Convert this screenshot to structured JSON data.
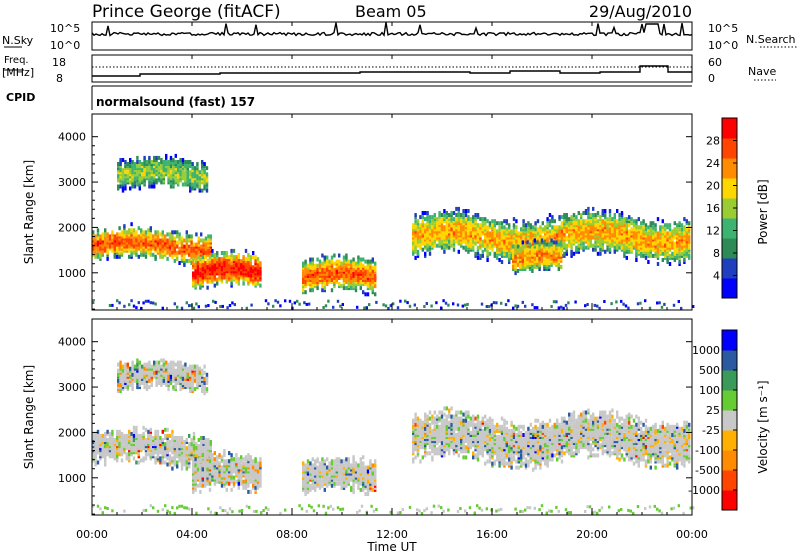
{
  "header": {
    "station": "Prince George (fitACF)",
    "beam": "Beam 05",
    "date": "29/Aug/2010"
  },
  "noise_panel": {
    "left_label": "N.Sky",
    "right_label": "N.Search",
    "left_ticks": [
      "10^5",
      "10^0"
    ],
    "right_ticks": [
      "10^5",
      "10^0"
    ]
  },
  "freq_panel": {
    "left_label_1": "Freq.",
    "left_label_2": "[MHz]",
    "right_label": "Nave",
    "left_ticks": [
      "18",
      "8"
    ],
    "right_ticks": [
      "60",
      "0"
    ]
  },
  "cpid_panel": {
    "left_label": "CPID",
    "program": "normalsound (fast) 157"
  },
  "colors": {
    "power": [
      "#0000ff",
      "#1f3fbf",
      "#2e8b57",
      "#3cb371",
      "#9acd32",
      "#ffd700",
      "#ff8c00",
      "#ff4500",
      "#ff0000"
    ],
    "velocity": [
      "#ff0000",
      "#ff4500",
      "#ff8c00",
      "#ffb000",
      "#c8c8c8",
      "#66cc33",
      "#3a9a5a",
      "#2c5aa0",
      "#0000ff"
    ]
  },
  "chart_data": [
    {
      "type": "heatmap",
      "quantity": "Power",
      "ylabel": "Slant Range [km]",
      "ylim": [
        180,
        4500
      ],
      "yticks": [
        "1000",
        "2000",
        "3000",
        "4000"
      ],
      "xlim": [
        0,
        24
      ],
      "colorbar": {
        "label": "Power [dB]",
        "ticks": [
          "4",
          "8",
          "12",
          "16",
          "20",
          "24",
          "28"
        ],
        "range": [
          0,
          32
        ]
      },
      "echo_regions": [
        {
          "t_start": 0.0,
          "t_end": 4.8,
          "range_center": 1600,
          "range_width": 380,
          "peak_db": 26
        },
        {
          "t_start": 1.0,
          "t_end": 4.6,
          "range_center": 3150,
          "range_width": 380,
          "peak_db": 16
        },
        {
          "t_start": 4.0,
          "t_end": 6.7,
          "range_center": 1000,
          "range_width": 430,
          "peak_db": 30
        },
        {
          "t_start": 8.4,
          "t_end": 11.3,
          "range_center": 900,
          "range_width": 430,
          "peak_db": 26
        },
        {
          "t_start": 12.8,
          "t_end": 23.9,
          "range_center": 1800,
          "range_width": 520,
          "peak_db": 22
        },
        {
          "t_start": 16.8,
          "t_end": 18.8,
          "range_center": 1300,
          "range_width": 360,
          "peak_db": 24
        }
      ]
    },
    {
      "type": "heatmap",
      "quantity": "Velocity",
      "ylabel": "Slant Range [km]",
      "ylim": [
        180,
        4500
      ],
      "yticks": [
        "1000",
        "2000",
        "3000",
        "4000"
      ],
      "xlim": [
        0,
        24
      ],
      "xlabel": "Time UT",
      "xticks": [
        "00:00",
        "04:00",
        "08:00",
        "12:00",
        "16:00",
        "20:00",
        "00:00"
      ],
      "colorbar": {
        "label": "Velocity [m s⁻¹]",
        "ticks": [
          "1000",
          "500",
          "100",
          "25",
          "-25",
          "-100",
          "-500",
          "-1000"
        ]
      },
      "echo_regions": [
        {
          "t_start": 0.0,
          "t_end": 4.8,
          "range_center": 1650,
          "range_width": 420,
          "typical_velocity": 0
        },
        {
          "t_start": 1.0,
          "t_end": 4.6,
          "range_center": 3200,
          "range_width": 350,
          "typical_velocity": -150
        },
        {
          "t_start": 4.0,
          "t_end": 6.7,
          "range_center": 1050,
          "range_width": 450,
          "typical_velocity": -200
        },
        {
          "t_start": 8.4,
          "t_end": 11.3,
          "range_center": 1000,
          "range_width": 420,
          "typical_velocity": 0
        },
        {
          "t_start": 12.8,
          "t_end": 23.9,
          "range_center": 1850,
          "range_width": 560,
          "typical_velocity": 0
        }
      ]
    }
  ]
}
